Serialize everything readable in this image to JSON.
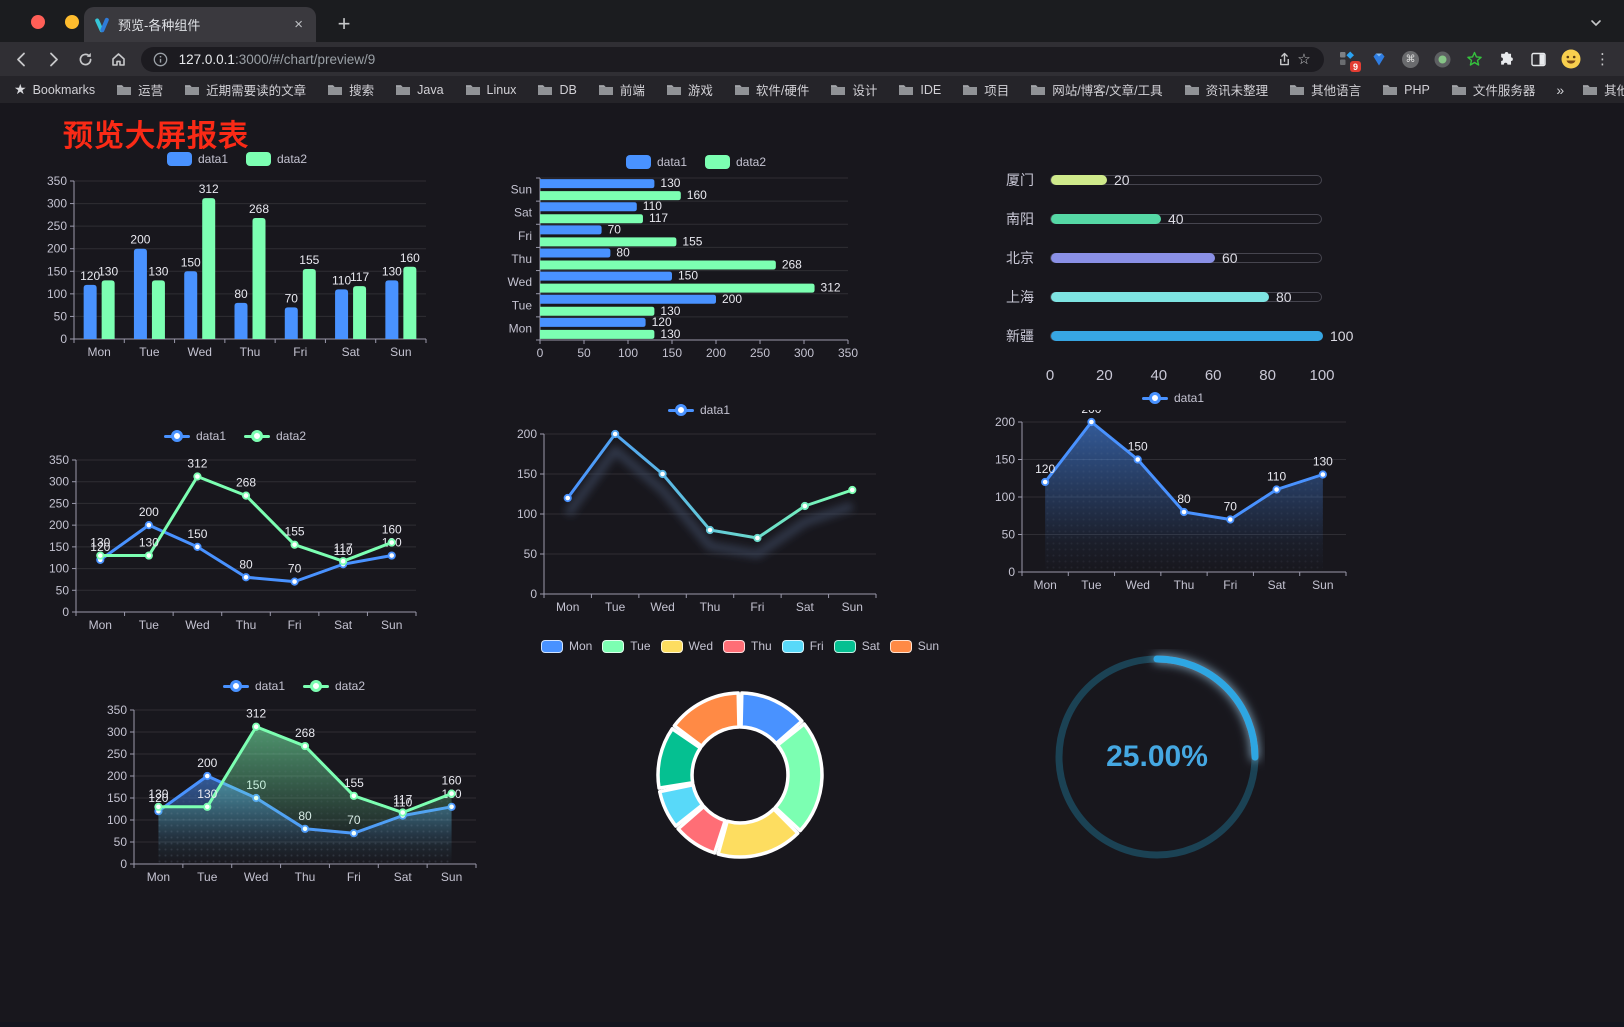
{
  "browser": {
    "tab_title": "预览-各种组件",
    "url_host": "127.0.0.1",
    "url_rest": ":3000/#/chart/preview/9",
    "bookmarks_label": "Bookmarks",
    "bookmarks": [
      "运营",
      "近期需要读的文章",
      "搜索",
      "Java",
      "Linux",
      "DB",
      "前端",
      "游戏",
      "软件/硬件",
      "设计",
      "IDE",
      "项目",
      "网站/博客/文章/工具",
      "资讯未整理",
      "其他语言",
      "PHP",
      "文件服务器"
    ],
    "other_bookmarks": "其他书签",
    "extension_badge": "9",
    "icons": {
      "close": "×",
      "new_tab": "+",
      "kebab": "⋮",
      "bookmarks_star": "★",
      "bookmark_star_outline": "☆",
      "overflow_chevrons": "»",
      "command_symbol": "⌘"
    }
  },
  "page": {
    "title": "预览大屏报表",
    "title_color": "#fa2a16"
  },
  "chart_data": [
    {
      "id": "grouped-bar",
      "type": "bar",
      "legend": true,
      "value_labels": true,
      "categories": [
        "Mon",
        "Tue",
        "Wed",
        "Thu",
        "Fri",
        "Sat",
        "Sun"
      ],
      "series": [
        {
          "name": "data1",
          "color": "#4992ff",
          "values": [
            120,
            200,
            150,
            80,
            70,
            110,
            130
          ]
        },
        {
          "name": "data2",
          "color": "#7cffb2",
          "values": [
            130,
            130,
            312,
            268,
            155,
            117,
            160
          ]
        }
      ],
      "ylim": [
        0,
        350
      ],
      "ytick": 50,
      "grid": true
    },
    {
      "id": "horizontal-bar",
      "type": "bar-horizontal",
      "legend": true,
      "value_labels": true,
      "categories": [
        "Mon",
        "Tue",
        "Wed",
        "Thu",
        "Fri",
        "Sat",
        "Sun"
      ],
      "categories_note": "Mon at bottom, Sun at top",
      "series": [
        {
          "name": "data1",
          "color": "#4992ff",
          "values": [
            120,
            200,
            150,
            80,
            70,
            110,
            130
          ]
        },
        {
          "name": "data2",
          "color": "#7cffb2",
          "values": [
            130,
            130,
            312,
            268,
            155,
            117,
            160
          ]
        }
      ],
      "xlim": [
        0,
        350
      ],
      "xtick": 50,
      "grid": true
    },
    {
      "id": "city-progress",
      "type": "progress",
      "items": [
        {
          "label": "厦门",
          "value": 20,
          "color": "#cfe98b"
        },
        {
          "label": "南阳",
          "value": 40,
          "color": "#55d8a5"
        },
        {
          "label": "北京",
          "value": 60,
          "color": "#8a90e6"
        },
        {
          "label": "上海",
          "value": 80,
          "color": "#7ee4e2"
        },
        {
          "label": "新疆",
          "value": 100,
          "color": "#37a6e3"
        }
      ],
      "xlim": [
        0,
        100
      ],
      "xticks": [
        0,
        20,
        40,
        60,
        80,
        100
      ]
    },
    {
      "id": "two-line",
      "type": "line",
      "legend": true,
      "value_labels": true,
      "categories": [
        "Mon",
        "Tue",
        "Wed",
        "Thu",
        "Fri",
        "Sat",
        "Sun"
      ],
      "series": [
        {
          "name": "data1",
          "color": "#4992ff",
          "values": [
            120,
            200,
            150,
            80,
            70,
            110,
            130
          ]
        },
        {
          "name": "data2",
          "color": "#7cffb2",
          "values": [
            130,
            130,
            312,
            268,
            155,
            117,
            160
          ]
        }
      ],
      "ylim": [
        0,
        350
      ],
      "ytick": 50,
      "grid": true
    },
    {
      "id": "gradient-line",
      "type": "line",
      "legend": true,
      "value_labels": false,
      "categories": [
        "Mon",
        "Tue",
        "Wed",
        "Thu",
        "Fri",
        "Sat",
        "Sun"
      ],
      "series": [
        {
          "name": "data1",
          "gradient": [
            "#4992ff",
            "#7cffb2"
          ],
          "shadow": true,
          "values": [
            120,
            200,
            150,
            80,
            70,
            110,
            130
          ]
        }
      ],
      "ylim": [
        0,
        200
      ],
      "ytick": 50,
      "grid": true
    },
    {
      "id": "single-area",
      "type": "line",
      "area": true,
      "legend": true,
      "value_labels": true,
      "categories": [
        "Mon",
        "Tue",
        "Wed",
        "Thu",
        "Fri",
        "Sat",
        "Sun"
      ],
      "series": [
        {
          "name": "data1",
          "color": "#4992ff",
          "values": [
            120,
            200,
            150,
            80,
            70,
            110,
            130
          ]
        }
      ],
      "ylim": [
        0,
        200
      ],
      "ytick": 50,
      "grid": true
    },
    {
      "id": "two-area",
      "type": "line",
      "area": true,
      "legend": true,
      "value_labels": true,
      "categories": [
        "Mon",
        "Tue",
        "Wed",
        "Thu",
        "Fri",
        "Sat",
        "Sun"
      ],
      "series": [
        {
          "name": "data1",
          "color": "#4992ff",
          "values": [
            120,
            200,
            150,
            80,
            70,
            110,
            130
          ]
        },
        {
          "name": "data2",
          "color": "#7cffb2",
          "values": [
            130,
            130,
            312,
            268,
            155,
            117,
            160
          ]
        }
      ],
      "ylim": [
        0,
        350
      ],
      "ytick": 50,
      "grid": true
    },
    {
      "id": "week-donut",
      "type": "pie",
      "legend": true,
      "inner_radius_ratio": 0.585,
      "items": [
        {
          "label": "Mon",
          "value": 120,
          "color": "#4992ff"
        },
        {
          "label": "Tue",
          "value": 200,
          "color": "#7cffb2"
        },
        {
          "label": "Wed",
          "value": 150,
          "color": "#fddd60"
        },
        {
          "label": "Thu",
          "value": 80,
          "color": "#ff6e76"
        },
        {
          "label": "Fri",
          "value": 70,
          "color": "#58d9f9"
        },
        {
          "label": "Sat",
          "value": 110,
          "color": "#05c091"
        },
        {
          "label": "Sun",
          "value": 130,
          "color": "#ff8a45"
        }
      ]
    },
    {
      "id": "percent-gauge",
      "type": "gauge",
      "value": 25,
      "label": "25.00%",
      "color": "#2fa6e2",
      "track_color": "#1b4254",
      "text_color": "#45a8e2"
    }
  ]
}
